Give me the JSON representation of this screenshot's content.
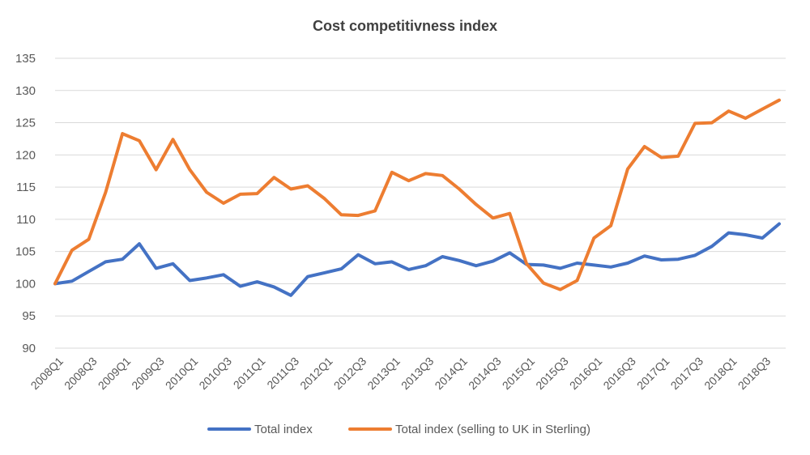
{
  "chart_data": {
    "type": "line",
    "title": "Cost competitivness index",
    "xlabel": "",
    "ylabel": "",
    "ylim": [
      90,
      135
    ],
    "yticks": [
      90,
      95,
      100,
      105,
      110,
      115,
      120,
      125,
      130,
      135
    ],
    "grid": true,
    "legend_position": "bottom",
    "x": [
      "2008Q1",
      "2008Q2",
      "2008Q3",
      "2008Q4",
      "2009Q1",
      "2009Q2",
      "2009Q3",
      "2009Q4",
      "2010Q1",
      "2010Q2",
      "2010Q3",
      "2010Q4",
      "2011Q1",
      "2011Q2",
      "2011Q3",
      "2011Q4",
      "2012Q1",
      "2012Q2",
      "2012Q3",
      "2012Q4",
      "2013Q1",
      "2013Q2",
      "2013Q3",
      "2013Q4",
      "2014Q1",
      "2014Q2",
      "2014Q3",
      "2014Q4",
      "2015Q1",
      "2015Q2",
      "2015Q3",
      "2015Q4",
      "2016Q1",
      "2016Q2",
      "2016Q3",
      "2016Q4",
      "2017Q1",
      "2017Q2",
      "2017Q3",
      "2017Q4",
      "2018Q1",
      "2018Q2",
      "2018Q3",
      "2018Q4"
    ],
    "xtick_labels": [
      "2008Q1",
      "2008Q3",
      "2009Q1",
      "2009Q3",
      "2010Q1",
      "2010Q3",
      "2011Q1",
      "2011Q3",
      "2012Q1",
      "2012Q3",
      "2013Q1",
      "2013Q3",
      "2014Q1",
      "2014Q3",
      "2015Q1",
      "2015Q3",
      "2016Q1",
      "2016Q3",
      "2017Q1",
      "2017Q3",
      "2018Q1",
      "2018Q3"
    ],
    "series": [
      {
        "name": "Total index",
        "color": "#4472c4",
        "values": [
          100,
          100.4,
          101.9,
          103.4,
          103.8,
          106.2,
          102.4,
          103.1,
          100.5,
          100.9,
          101.4,
          99.6,
          100.3,
          99.5,
          98.2,
          101.1,
          101.7,
          102.3,
          104.5,
          103.1,
          103.4,
          102.2,
          102.8,
          104.2,
          103.6,
          102.8,
          103.5,
          104.8,
          103.0,
          102.9,
          102.4,
          103.2,
          102.9,
          102.6,
          103.2,
          104.3,
          103.7,
          103.8,
          104.4,
          105.8,
          107.9,
          107.6,
          107.1,
          109.3
        ]
      },
      {
        "name": "Total index (selling to UK in Sterling)",
        "color": "#ed7d31",
        "values": [
          100,
          105.2,
          106.9,
          114.2,
          123.3,
          122.2,
          117.7,
          122.4,
          117.7,
          114.2,
          112.5,
          113.9,
          114.0,
          116.5,
          114.7,
          115.2,
          113.2,
          110.7,
          110.6,
          111.3,
          117.3,
          116.0,
          117.1,
          116.8,
          114.7,
          112.3,
          110.2,
          110.9,
          103.1,
          100.1,
          99.1,
          100.5,
          107.1,
          109.0,
          117.8,
          121.3,
          119.6,
          119.8,
          124.9,
          125.0,
          126.8,
          125.7,
          127.1,
          128.5
        ]
      }
    ]
  }
}
